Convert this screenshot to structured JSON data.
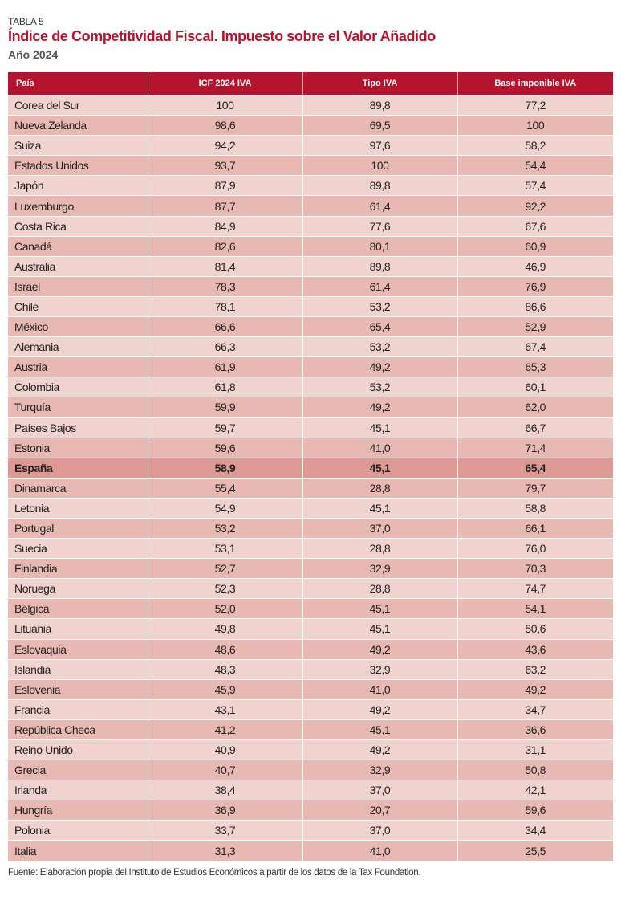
{
  "label": "TABLA 5",
  "title": "Índice de Competitividad Fiscal. Impuesto sobre el Valor Añadido",
  "subtitle": "Año 2024",
  "columns": [
    "País",
    "ICF 2024 IVA",
    "Tipo IVA",
    "Base imponible IVA"
  ],
  "highlight_row": "España",
  "colors": {
    "header": "#b5142f",
    "row_light": "#f0d3ce",
    "row_dark": "#e8b9b3",
    "row_highlight": "#de9994"
  },
  "rows": [
    [
      "Corea del Sur",
      "100",
      "89,8",
      "77,2"
    ],
    [
      "Nueva Zelanda",
      "98,6",
      "69,5",
      "100"
    ],
    [
      "Suiza",
      "94,2",
      "97,6",
      "58,2"
    ],
    [
      "Estados Unidos",
      "93,7",
      "100",
      "54,4"
    ],
    [
      "Japón",
      "87,9",
      "89,8",
      "57,4"
    ],
    [
      "Luxemburgo",
      "87,7",
      "61,4",
      "92,2"
    ],
    [
      "Costa Rica",
      "84,9",
      "77,6",
      "67,6"
    ],
    [
      "Canadá",
      "82,6",
      "80,1",
      "60,9"
    ],
    [
      "Australia",
      "81,4",
      "89,8",
      "46,9"
    ],
    [
      "Israel",
      "78,3",
      "61,4",
      "76,9"
    ],
    [
      "Chile",
      "78,1",
      "53,2",
      "86,6"
    ],
    [
      "México",
      "66,6",
      "65,4",
      "52,9"
    ],
    [
      "Alemania",
      "66,3",
      "53,2",
      "67,4"
    ],
    [
      "Austria",
      "61,9",
      "49,2",
      "65,3"
    ],
    [
      "Colombia",
      "61,8",
      "53,2",
      "60,1"
    ],
    [
      "Turquía",
      "59,9",
      "49,2",
      "62,0"
    ],
    [
      "Países Bajos",
      "59,7",
      "45,1",
      "66,7"
    ],
    [
      "Estonia",
      "59,6",
      "41,0",
      "71,4"
    ],
    [
      "España",
      "58,9",
      "45,1",
      "65,4"
    ],
    [
      "Dinamarca",
      "55,4",
      "28,8",
      "79,7"
    ],
    [
      "Letonia",
      "54,9",
      "45,1",
      "58,8"
    ],
    [
      "Portugal",
      "53,2",
      "37,0",
      "66,1"
    ],
    [
      "Suecia",
      "53,1",
      "28,8",
      "76,0"
    ],
    [
      "Finlandia",
      "52,7",
      "32,9",
      "70,3"
    ],
    [
      "Noruega",
      "52,3",
      "28,8",
      "74,7"
    ],
    [
      "Bélgica",
      "52,0",
      "45,1",
      "54,1"
    ],
    [
      "Lituania",
      "49,8",
      "45,1",
      "50,6"
    ],
    [
      "Eslovaquia",
      "48,6",
      "49,2",
      "43,6"
    ],
    [
      "Islandia",
      "48,3",
      "32,9",
      "63,2"
    ],
    [
      "Eslovenia",
      "45,9",
      "41,0",
      "49,2"
    ],
    [
      "Francia",
      "43,1",
      "49,2",
      "34,7"
    ],
    [
      "República Checa",
      "41,2",
      "45,1",
      "36,6"
    ],
    [
      "Reino Unido",
      "40,9",
      "49,2",
      "31,1"
    ],
    [
      "Grecia",
      "40,7",
      "32,9",
      "50,8"
    ],
    [
      "Irlanda",
      "38,4",
      "37,0",
      "42,1"
    ],
    [
      "Hungría",
      "36,9",
      "20,7",
      "59,6"
    ],
    [
      "Polonia",
      "33,7",
      "37,0",
      "34,4"
    ],
    [
      "Italia",
      "31,3",
      "41,0",
      "25,5"
    ]
  ],
  "source": "Fuente: Elaboración propia del Instituto de Estudios Económicos a partir de los datos de la Tax Foundation."
}
